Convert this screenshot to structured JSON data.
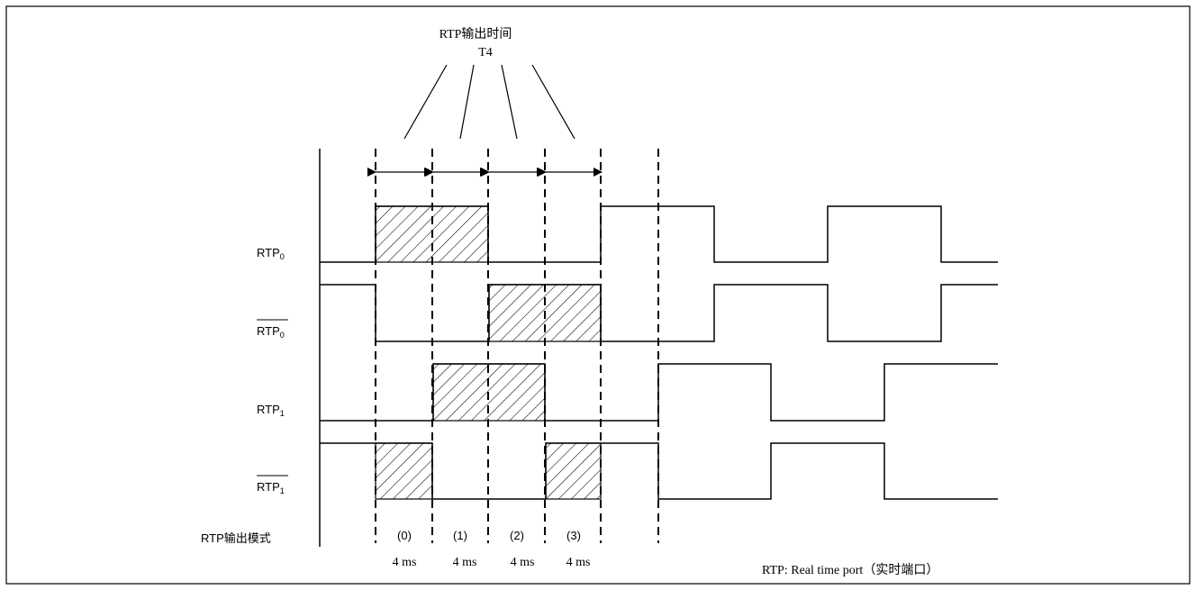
{
  "title": {
    "line1": "RTP输出时间",
    "line2": "T4"
  },
  "signals": [
    {
      "base": "RTP",
      "sub": "0",
      "inverted": false
    },
    {
      "base": "RTP",
      "sub": "0",
      "inverted": true
    },
    {
      "base": "RTP",
      "sub": "1",
      "inverted": false
    },
    {
      "base": "RTP",
      "sub": "1",
      "inverted": true
    }
  ],
  "mode_row": {
    "label": "RTP输出模式",
    "modes": [
      "(0)",
      "(1)",
      "(2)",
      "(3)"
    ],
    "durations": [
      "4 ms",
      "4 ms",
      "4 ms",
      "4 ms"
    ]
  },
  "footnote": "RTP: Real time port（实时端口）"
}
